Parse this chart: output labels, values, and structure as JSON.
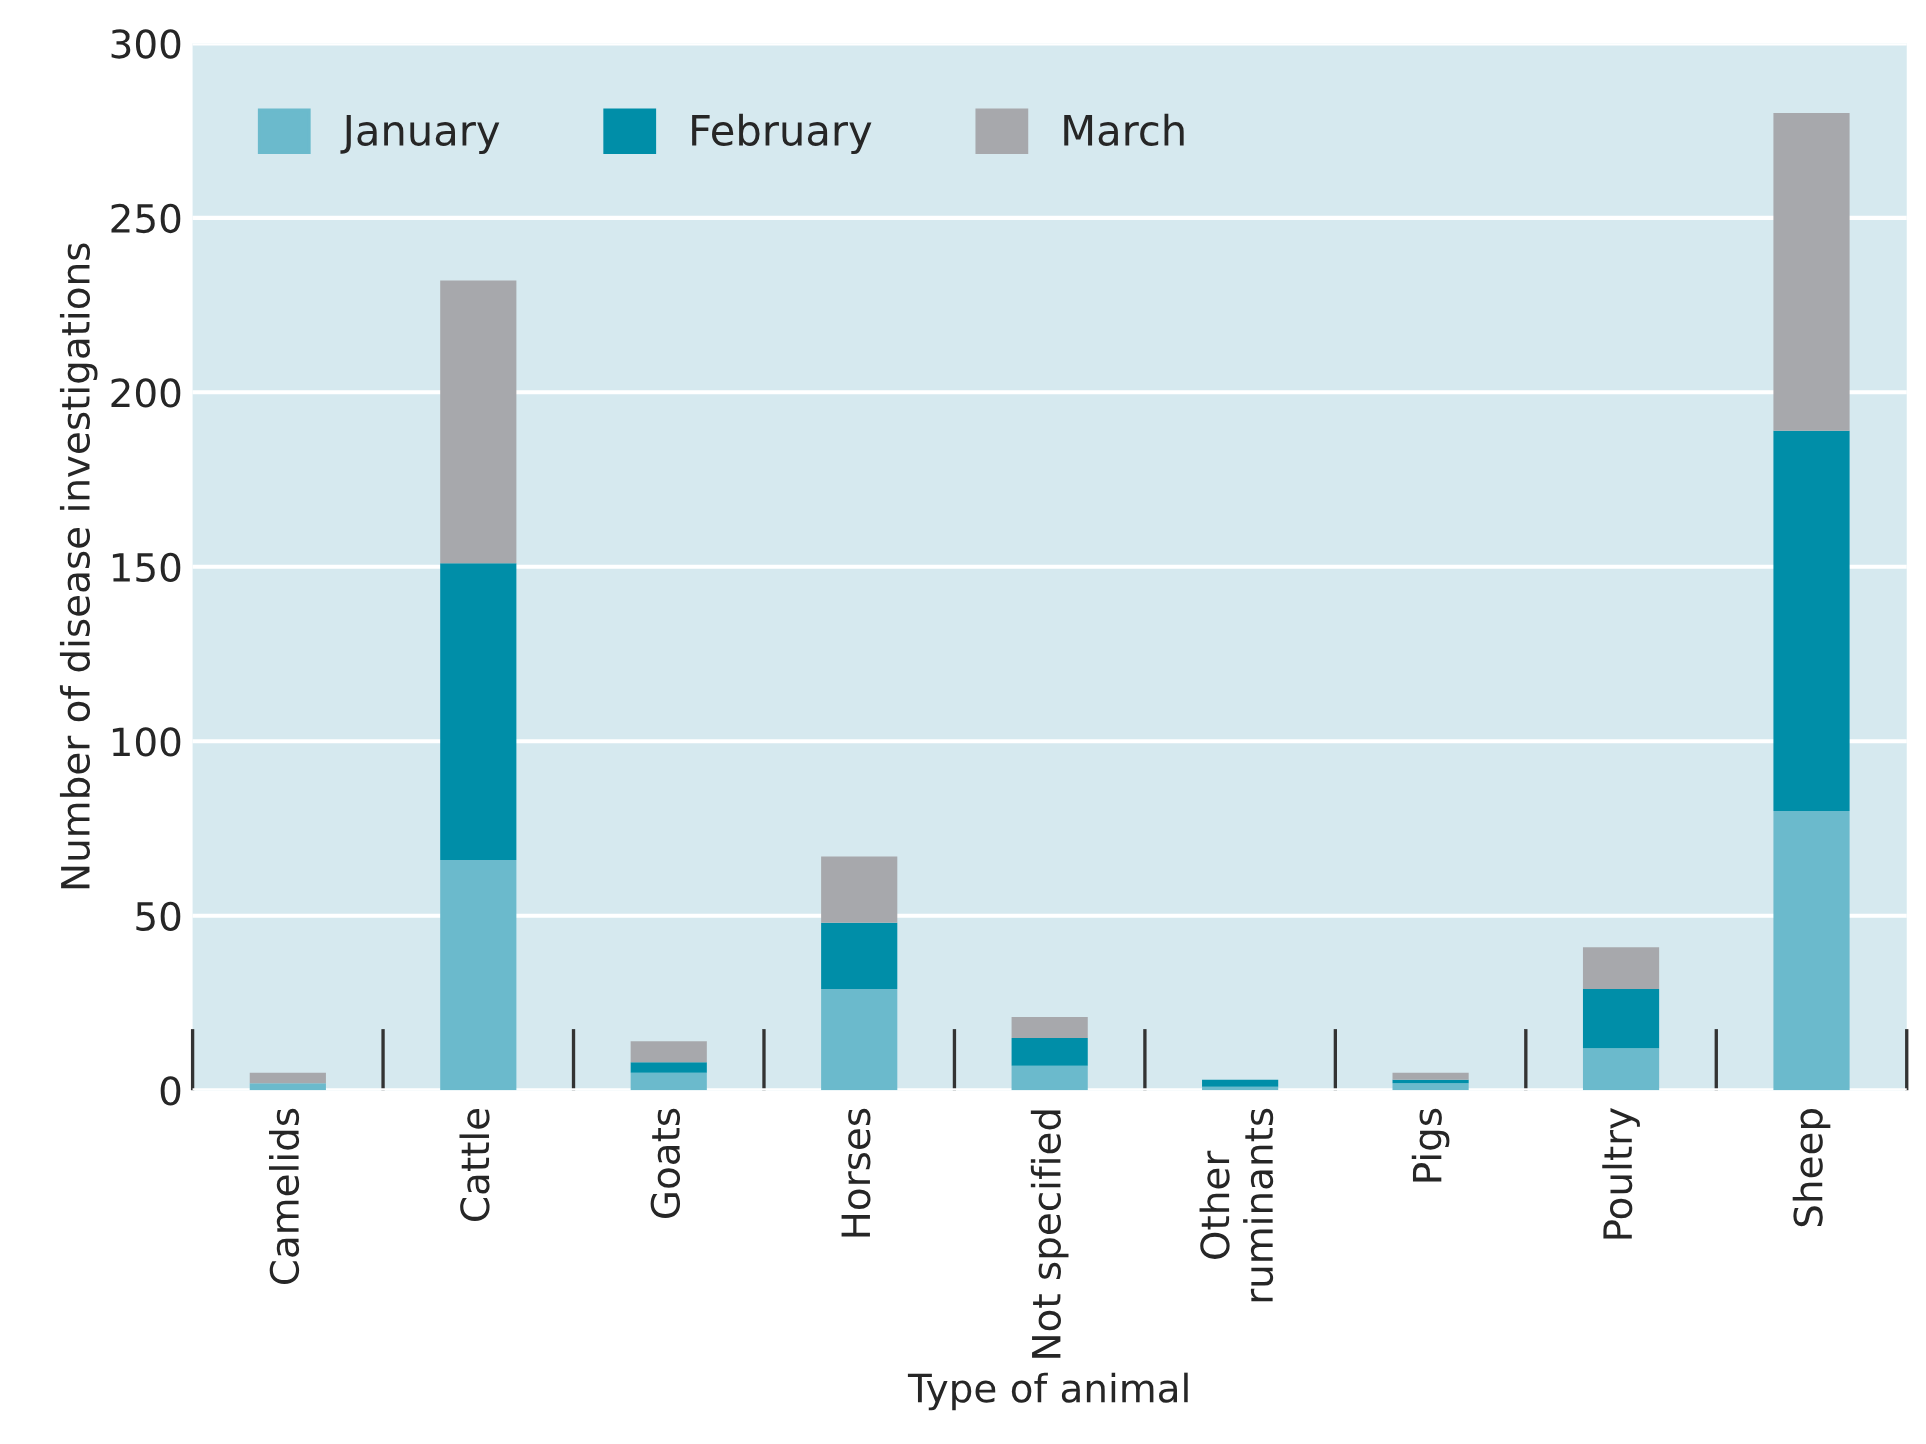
{
  "chart_data": {
    "type": "bar",
    "stacked": true,
    "xlabel": "Type of animal",
    "ylabel": "Number of disease investigations",
    "categories": [
      "Camelids",
      "Cattle",
      "Goats",
      "Horses",
      "Not specified",
      "Other\nruminants",
      "Pigs",
      "Poultry",
      "Sheep"
    ],
    "series": [
      {
        "name": "January",
        "color": "#6bbacc",
        "values": [
          2,
          66,
          5,
          29,
          7,
          1,
          2,
          12,
          80
        ]
      },
      {
        "name": "February",
        "color": "#008ea8",
        "values": [
          0,
          85,
          3,
          19,
          8,
          2,
          1,
          17,
          109
        ]
      },
      {
        "name": "March",
        "color": "#a7a8ac",
        "values": [
          3,
          81,
          6,
          19,
          6,
          0,
          2,
          12,
          91
        ]
      }
    ],
    "ylim": [
      0,
      300
    ],
    "yticks": [
      0,
      50,
      100,
      150,
      200,
      250,
      300
    ],
    "grid": "y",
    "legend": "top left"
  }
}
